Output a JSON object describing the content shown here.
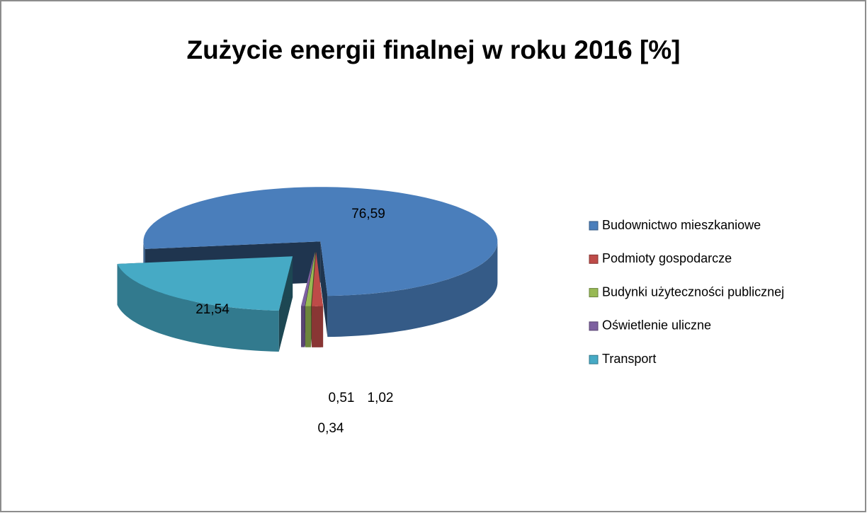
{
  "chart_data": {
    "type": "pie",
    "title": "Zużycie energii finalnej w roku 2016 [%]",
    "categories": [
      "Budownictwo mieszkaniowe",
      "Podmioty gospodarcze",
      "Budynki użyteczności publicznej",
      "Oświetlenie uliczne",
      "Transport"
    ],
    "values": [
      76.59,
      1.02,
      0.51,
      0.34,
      21.54
    ],
    "value_labels": [
      "76,59",
      "1,02",
      "0,51",
      "0,34",
      "21,54"
    ],
    "colors": [
      "#4a7ebb",
      "#be4b48",
      "#98b954",
      "#7d60a0",
      "#46aac5"
    ],
    "legend": "right"
  }
}
